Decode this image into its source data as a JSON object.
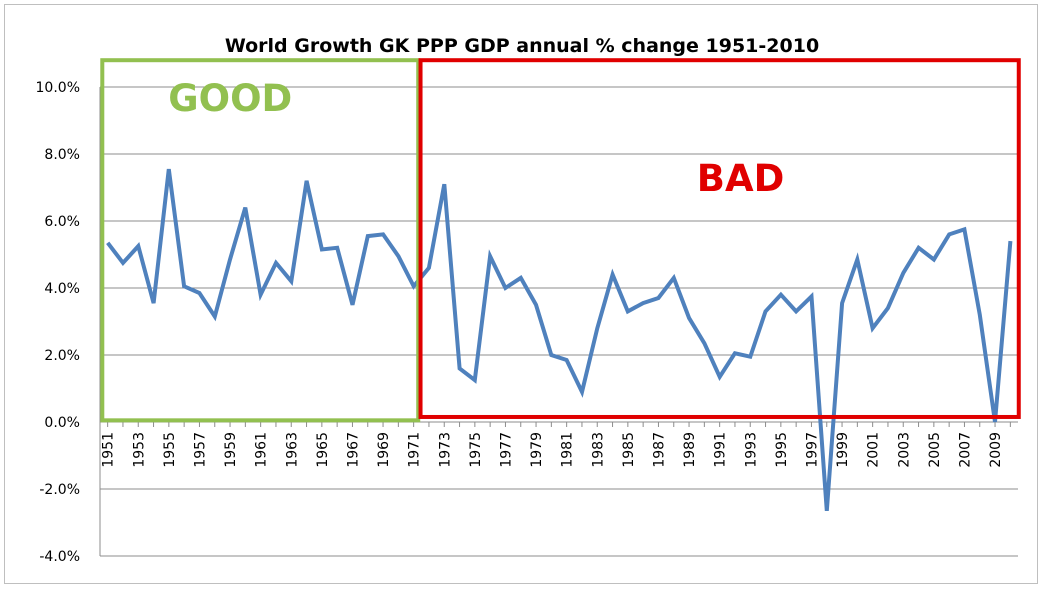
{
  "chart_data": {
    "type": "line",
    "title": "World Growth GK PPP GDP annual % change 1951-2010",
    "xlabel": "",
    "ylabel": "",
    "ylim": [
      -4.0,
      10.0
    ],
    "y_ticks": [
      10.0,
      8.0,
      6.0,
      4.0,
      2.0,
      0.0,
      -2.0,
      -4.0
    ],
    "y_tick_labels": [
      "10.0%",
      "8.0%",
      "6.0%",
      "4.0%",
      "2.0%",
      "0.0%",
      "-2.0%",
      "-4.0%"
    ],
    "x_tick_labels": [
      "1951",
      "1953",
      "1955",
      "1957",
      "1959",
      "1961",
      "1963",
      "1965",
      "1967",
      "1969",
      "1971",
      "1973",
      "1975",
      "1977",
      "1979",
      "1981",
      "1983",
      "1985",
      "1987",
      "1989",
      "1991",
      "1993",
      "1995",
      "1997",
      "1999",
      "2001",
      "2003",
      "2005",
      "2007",
      "2009"
    ],
    "grid": "horizontal",
    "series_color": "#4f81bd",
    "series": [
      {
        "name": "",
        "x": [
          1951,
          1952,
          1953,
          1954,
          1955,
          1956,
          1957,
          1958,
          1959,
          1960,
          1961,
          1962,
          1963,
          1964,
          1965,
          1966,
          1967,
          1968,
          1969,
          1970,
          1971,
          1972,
          1973,
          1974,
          1975,
          1976,
          1977,
          1978,
          1979,
          1980,
          1981,
          1982,
          1983,
          1984,
          1985,
          1986,
          1987,
          1988,
          1989,
          1990,
          1991,
          1992,
          1993,
          1994,
          1995,
          1996,
          1997,
          1998,
          1999,
          2000,
          2001,
          2002,
          2003,
          2004,
          2005,
          2006,
          2007,
          2008,
          2009,
          2010
        ],
        "values": [
          5.35,
          4.75,
          5.25,
          3.55,
          7.55,
          4.05,
          3.85,
          3.15,
          4.85,
          6.4,
          3.8,
          4.75,
          4.2,
          7.2,
          5.15,
          5.2,
          3.5,
          5.55,
          5.6,
          4.95,
          4.05,
          4.6,
          7.1,
          1.6,
          1.25,
          4.95,
          4.0,
          4.3,
          3.5,
          2.0,
          1.85,
          0.9,
          2.8,
          4.4,
          3.3,
          3.55,
          3.7,
          4.3,
          3.1,
          2.35,
          1.35,
          2.05,
          1.95,
          3.3,
          3.8,
          3.3,
          3.75,
          -2.65,
          3.55,
          4.85,
          2.8,
          3.4,
          4.45,
          5.2,
          4.85,
          5.6,
          5.75,
          3.2,
          0.0,
          5.4
        ]
      }
    ],
    "annotations": [
      {
        "label": "GOOD",
        "color": "#92c050",
        "x_range": [
          1950.65,
          1971.3
        ],
        "y_range": [
          0.05,
          10.8
        ]
      },
      {
        "label": "BAD",
        "color": "#e00000",
        "x_range": [
          1971.45,
          2010.55
        ],
        "y_range": [
          0.15,
          10.8
        ]
      }
    ]
  }
}
